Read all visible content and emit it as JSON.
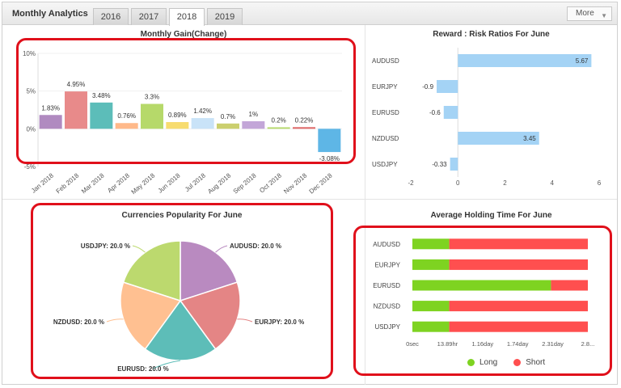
{
  "header": {
    "title": "Monthly Analytics",
    "tabs": [
      {
        "label": "2016",
        "active": false
      },
      {
        "label": "2017",
        "active": false
      },
      {
        "label": "2018",
        "active": true
      },
      {
        "label": "2019",
        "active": false
      }
    ],
    "more_label": "More"
  },
  "colors": {
    "highlight": "#e0101b",
    "long": "#7ed321",
    "short": "#ff4f4f",
    "ratio_bar": "#a4d3f5"
  },
  "chart_data": [
    {
      "type": "bar",
      "title": "Monthly Gain(Change)",
      "categories": [
        "Jan 2018",
        "Feb 2018",
        "Mar 2018",
        "Apr 2018",
        "May 2018",
        "Jun 2018",
        "Jul 2018",
        "Aug 2018",
        "Sep 2018",
        "Oct 2018",
        "Nov 2018",
        "Dec 2018"
      ],
      "values": [
        1.83,
        4.95,
        3.48,
        0.76,
        3.3,
        0.89,
        1.42,
        0.7,
        1,
        0.2,
        0.22,
        -3.08
      ],
      "data_labels": [
        "1.83%",
        "4.95%",
        "3.48%",
        "0.76%",
        "3.3%",
        "0.89%",
        "1.42%",
        "0.7%",
        "1%",
        "0.2%",
        "0.22%",
        "-3.08%"
      ],
      "bar_colors": [
        "#b08ac0",
        "#e88a8a",
        "#5cbdb9",
        "#ffb98a",
        "#b6d96a",
        "#f7dc6f",
        "#c9e3f8",
        "#cbcf6e",
        "#c3a6d8",
        "#b6d96a",
        "#e06a6a",
        "#5eb6e6"
      ],
      "yticks": [
        "10%",
        "5%",
        "0%",
        "-5%"
      ],
      "ylim": [
        -5,
        10
      ]
    },
    {
      "type": "bar",
      "title": "Reward : Risk Ratios For June",
      "categories": [
        "AUDUSD",
        "EURJPY",
        "EURUSD",
        "NZDUSD",
        "USDJPY"
      ],
      "values": [
        5.67,
        -0.9,
        -0.6,
        3.45,
        -0.33
      ],
      "data_labels": [
        "5.67",
        "-0.9",
        "-0.6",
        "3.45",
        "-0.33"
      ],
      "xticks": [
        "-2",
        "0",
        "2",
        "4",
        "6"
      ],
      "xlim": [
        -2,
        6
      ]
    },
    {
      "type": "pie",
      "title": "Currencies Popularity For June",
      "labels": [
        "AUDUSD: 20.0 %",
        "EURJPY: 20.0 %",
        "EURUSD: 20.0 %",
        "NZDUSD: 20.0 %",
        "USDJPY: 20.0 %"
      ],
      "values": [
        20,
        20,
        20,
        20,
        20
      ],
      "colors": [
        "#b98ac0",
        "#e48585",
        "#5dbdb8",
        "#ffc091",
        "#bcd96e"
      ]
    },
    {
      "type": "bar",
      "title": "Average Holding Time For June",
      "categories": [
        "AUDUSD",
        "EURJPY",
        "EURUSD",
        "NZDUSD",
        "USDJPY"
      ],
      "series": [
        {
          "name": "Long",
          "values": [
            0.21,
            0.21,
            0.79,
            0.21,
            0.21
          ]
        },
        {
          "name": "Short",
          "values": [
            0.79,
            0.79,
            0.21,
            0.79,
            0.79
          ]
        }
      ],
      "xticks": [
        "0sec",
        "13.89hr",
        "1.16day",
        "1.74day",
        "2.31day",
        "2.8..."
      ]
    }
  ]
}
